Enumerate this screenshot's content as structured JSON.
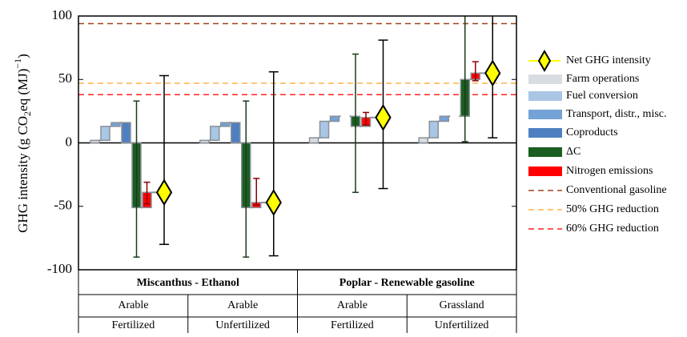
{
  "chart_data": {
    "type": "waterfall",
    "ylabel_parts": [
      "GHG intensity (g CO",
      "2",
      "eq (MJ)",
      "−1",
      ")"
    ],
    "ylim": [
      -100,
      100
    ],
    "yticks": [
      -100,
      -50,
      0,
      50,
      100
    ],
    "group_labels": [
      "Miscanthus - Ethanol",
      "Poplar - Renewable gasoline"
    ],
    "land": [
      "Arable",
      "Arable",
      "Arable",
      "Grassland"
    ],
    "fertilization": [
      "Fertilized",
      "Unfertilized",
      "Fertilized",
      "Unfertilized"
    ],
    "series": [
      {
        "name": "Farm operations",
        "color": "#d9dde2",
        "values": [
          2,
          2,
          4,
          4
        ]
      },
      {
        "name": "Fuel conversion",
        "color": "#a9c6e4",
        "values": [
          11,
          11,
          13,
          13
        ]
      },
      {
        "name": "Transport, distr., misc.",
        "color": "#73a2d6",
        "values": [
          3,
          3,
          4,
          4
        ]
      },
      {
        "name": "Coproducts",
        "color": "#4f7fc0",
        "values": [
          -16,
          -16,
          0,
          0
        ]
      },
      {
        "name": "ΔC",
        "color": "#1b5e20",
        "error_color": "#1b3a1b",
        "values": [
          -51,
          -51,
          -8,
          29
        ],
        "ranges": [
          [
            -90,
            33
          ],
          [
            -90,
            33
          ],
          [
            -39,
            70
          ],
          [
            1,
            100
          ]
        ]
      },
      {
        "name": "Nitrogen emissions",
        "color": "#ff0000",
        "error_color": "#8b0000",
        "values": [
          12,
          4,
          7,
          5
        ],
        "ranges": [
          [
            -48,
            -31
          ],
          [
            -49,
            -28
          ],
          [
            14,
            24
          ],
          [
            49,
            64
          ]
        ]
      }
    ],
    "net": {
      "name": "Net GHG intensity",
      "color": "#ffff00",
      "values": [
        -39,
        -47,
        20,
        55
      ],
      "ranges": [
        [
          -80,
          53
        ],
        [
          -89,
          56
        ],
        [
          -36,
          81
        ],
        [
          4,
          100
        ]
      ]
    },
    "reference_lines": [
      {
        "name": "Conventional gasoline",
        "value": 94,
        "color": "#a0421e"
      },
      {
        "name": "50% GHG reduction",
        "value": 47,
        "color": "#ffb347"
      },
      {
        "name": "60% GHG reduction",
        "value": 38,
        "color": "#ff2020"
      }
    ]
  }
}
